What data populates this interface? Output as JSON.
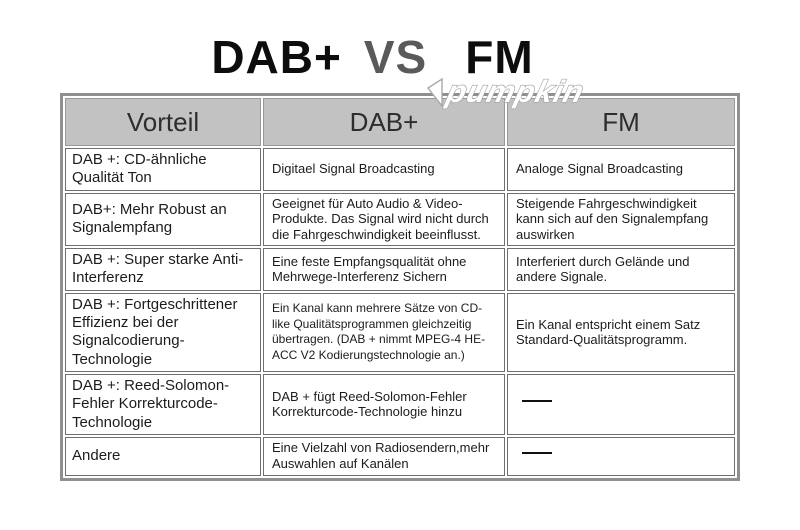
{
  "title": {
    "left": "DAB+",
    "middle": "VS",
    "right": "FM"
  },
  "watermark": {
    "brand": "pumpkin"
  },
  "colors": {
    "header_bg": "#c2c2c2",
    "outer_border": "#8f8f8f",
    "cell_border": "#6f6f6f",
    "vs_gray": "#5a5a5a",
    "text": "#1c1c1c"
  },
  "table": {
    "headers": [
      "Vorteil",
      "DAB+",
      "FM"
    ],
    "column_keys": [
      "vorteil",
      "dab",
      "fm"
    ],
    "empty_marker": "——",
    "rows": [
      {
        "cells": [
          "DAB +: CD-ähnliche Qualität Ton",
          "Digitael Signal Broadcasting",
          "Analoge Signal Broadcasting"
        ]
      },
      {
        "cells": [
          "DAB+: Mehr Robust an Signalempfang",
          "Geeignet für Auto Audio & Video-Produkte. Das Signal wird nicht durch die Fahrgeschwindigkeit beeinflusst.",
          "Steigende Fahrgeschwindigkeit kann sich auf den Signalempfang auswirken"
        ]
      },
      {
        "cells": [
          "DAB +: Super starke Anti-Interferenz",
          "Eine feste Empfangsqualität ohne Mehrwege-Interferenz Sichern",
          "Interferiert durch Gelände und andere Signale."
        ]
      },
      {
        "cells": [
          "DAB +: Fortgeschrittener Effizienz bei der Signalcodierung-Technologie",
          "Ein Kanal kann mehrere Sätze von CD-like Qualitätsprogrammen gleichzeitig übertragen. (DAB + nimmt MPEG-4 HE-ACC V2 Kodierungstechnologie an.)",
          "Ein Kanal entspricht einem Satz Standard-Qualitätsprogramm."
        ]
      },
      {
        "cells": [
          "DAB +: Reed-Solomon-Fehler Korrekturcode-Technologie",
          "DAB + fügt Reed-Solomon-Fehler Korrekturcode-Technologie hinzu",
          "——"
        ]
      },
      {
        "cells": [
          "Andere",
          "Eine Vielzahl von Radiosendern,mehr Auswahlen auf Kanälen",
          "——"
        ]
      }
    ]
  }
}
